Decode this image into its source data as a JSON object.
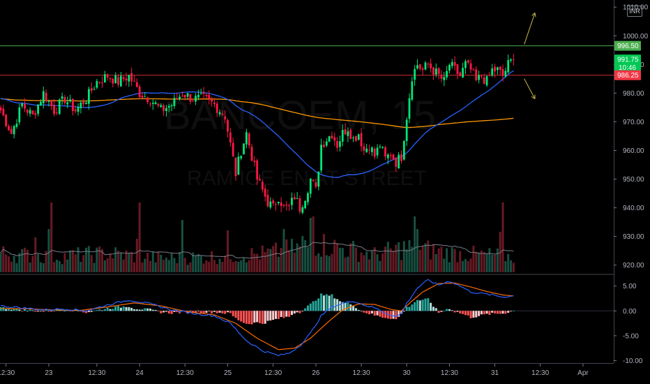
{
  "chart_data": {
    "type": "candlestick",
    "currency_label": "INR",
    "watermark_lines": [
      "BANCOEM, 15",
      "RAM ICE EN AT STREET"
    ],
    "price_axis": {
      "range": [
        917,
        1012
      ],
      "ticks": [
        920,
        930,
        940,
        950,
        960,
        970,
        980,
        990,
        1000,
        1010
      ],
      "tick_labels": [
        "920.00",
        "930.00",
        "940.00",
        "950.00",
        "960.00",
        "970.00",
        "980.00",
        "990.00",
        "1000.00",
        "1010.00"
      ]
    },
    "macd_axis": {
      "range": [
        -10.5,
        7.2
      ],
      "ticks": [
        5,
        0,
        -5,
        -10
      ],
      "tick_labels": [
        "5.00",
        "0.00",
        "-5.00",
        "-10.00"
      ]
    },
    "time_axis": {
      "labels": [
        {
          "text": "12:30",
          "i": 2
        },
        {
          "text": "23",
          "i": 18
        },
        {
          "text": "12:30",
          "i": 36
        },
        {
          "text": "24",
          "i": 52
        },
        {
          "text": "12:30",
          "i": 69
        },
        {
          "text": "25",
          "i": 85
        },
        {
          "text": "12:30",
          "i": 102
        },
        {
          "text": "26",
          "i": 118
        },
        {
          "text": "12:30",
          "i": 135
        },
        {
          "text": "30",
          "i": 152
        },
        {
          "text": "12:30",
          "i": 168
        },
        {
          "text": "31",
          "i": 185
        },
        {
          "text": "12:30",
          "i": 202
        },
        {
          "text": "Apr",
          "i": 218
        }
      ]
    },
    "price_tags": [
      {
        "id": "resistance",
        "label": "996.50",
        "value": 996.5,
        "color": "#4caf50"
      },
      {
        "id": "last",
        "label": "991.75",
        "sublabel": "10:46",
        "value": 991.75,
        "color": "#00c853"
      },
      {
        "id": "support",
        "label": "986.25",
        "value": 986.25,
        "color": "#f23645"
      }
    ],
    "levels": [
      {
        "name": "resistance-line",
        "value": 996.5,
        "color": "#4caf50"
      },
      {
        "name": "support-line",
        "value": 986.25,
        "color": "#d32f2f"
      }
    ],
    "arrows": [
      {
        "name": "up-arrow",
        "from": [
          196,
          997
        ],
        "to": [
          200,
          1008
        ],
        "color": "#c8b94a"
      },
      {
        "name": "down-arrow",
        "from": [
          196,
          985
        ],
        "to": [
          200,
          978
        ],
        "color": "#c8b94a"
      }
    ],
    "ma_short_color": "#2962ff",
    "ma_long_color": "#ff9800",
    "up_color": "#00e676",
    "down_color": "#ff1744",
    "macd_color": "#2962ff",
    "signal_color": "#ff6d00",
    "anchors": [
      [
        0,
        974
      ],
      [
        4,
        966
      ],
      [
        8,
        976
      ],
      [
        12,
        972
      ],
      [
        16,
        980
      ],
      [
        20,
        974
      ],
      [
        24,
        978
      ],
      [
        28,
        974
      ],
      [
        32,
        978
      ],
      [
        36,
        984
      ],
      [
        40,
        986
      ],
      [
        44,
        984
      ],
      [
        48,
        986
      ],
      [
        52,
        980
      ],
      [
        56,
        978
      ],
      [
        60,
        974
      ],
      [
        64,
        976
      ],
      [
        68,
        980
      ],
      [
        72,
        978
      ],
      [
        76,
        978
      ],
      [
        80,
        976
      ],
      [
        84,
        972
      ],
      [
        86,
        962
      ],
      [
        88,
        952
      ],
      [
        90,
        960
      ],
      [
        92,
        966
      ],
      [
        94,
        958
      ],
      [
        96,
        950
      ],
      [
        98,
        946
      ],
      [
        100,
        942
      ],
      [
        102,
        940
      ],
      [
        104,
        944
      ],
      [
        106,
        940
      ],
      [
        108,
        940
      ],
      [
        110,
        944
      ],
      [
        112,
        940
      ],
      [
        114,
        944
      ],
      [
        116,
        950
      ],
      [
        118,
        946
      ],
      [
        120,
        962
      ],
      [
        122,
        964
      ],
      [
        124,
        966
      ],
      [
        126,
        962
      ],
      [
        128,
        966
      ],
      [
        130,
        968
      ],
      [
        132,
        964
      ],
      [
        134,
        966
      ],
      [
        136,
        960
      ],
      [
        138,
        962
      ],
      [
        140,
        958
      ],
      [
        142,
        962
      ],
      [
        144,
        957
      ],
      [
        146,
        959
      ],
      [
        148,
        956
      ],
      [
        150,
        958
      ],
      [
        152,
        972
      ],
      [
        154,
        986
      ],
      [
        156,
        990
      ],
      [
        158,
        988
      ],
      [
        160,
        990
      ],
      [
        162,
        988
      ],
      [
        164,
        986
      ],
      [
        166,
        984
      ],
      [
        168,
        990
      ],
      [
        170,
        988
      ],
      [
        172,
        986
      ],
      [
        174,
        990
      ],
      [
        176,
        988
      ],
      [
        178,
        984
      ],
      [
        180,
        986
      ],
      [
        182,
        984
      ],
      [
        184,
        988
      ],
      [
        186,
        988
      ],
      [
        188,
        986
      ],
      [
        190,
        990
      ],
      [
        192,
        991.75
      ]
    ],
    "volume_anchors": [
      [
        0,
        0.3
      ],
      [
        20,
        0.25
      ],
      [
        40,
        0.3
      ],
      [
        60,
        0.22
      ],
      [
        80,
        0.25
      ],
      [
        100,
        0.3
      ],
      [
        120,
        0.45
      ],
      [
        140,
        0.28
      ],
      [
        152,
        0.4
      ],
      [
        170,
        0.3
      ],
      [
        192,
        0.25
      ]
    ],
    "volume_spikes": [
      [
        13,
        0.5
      ],
      [
        18,
        0.62
      ],
      [
        19,
        1.0
      ],
      [
        51,
        0.48
      ],
      [
        52,
        1.0
      ],
      [
        68,
        0.75
      ],
      [
        85,
        0.6
      ],
      [
        106,
        0.62
      ],
      [
        113,
        0.52
      ],
      [
        116,
        0.78
      ],
      [
        117,
        0.8
      ],
      [
        155,
        0.8
      ],
      [
        156,
        0.62
      ],
      [
        187,
        0.58
      ],
      [
        188,
        1.0
      ]
    ],
    "macd_anchors": [
      [
        0,
        1.0
      ],
      [
        8,
        0.6
      ],
      [
        16,
        0.2
      ],
      [
        24,
        0.4
      ],
      [
        32,
        0.0
      ],
      [
        40,
        1.2
      ],
      [
        48,
        2.2
      ],
      [
        56,
        1.4
      ],
      [
        64,
        0.2
      ],
      [
        72,
        -0.5
      ],
      [
        80,
        -1.0
      ],
      [
        86,
        -2.5
      ],
      [
        92,
        -6.0
      ],
      [
        98,
        -8.0
      ],
      [
        104,
        -9.0
      ],
      [
        108,
        -8.5
      ],
      [
        112,
        -7.0
      ],
      [
        116,
        -4.5
      ],
      [
        120,
        -1.0
      ],
      [
        124,
        0.8
      ],
      [
        128,
        1.5
      ],
      [
        132,
        2.0
      ],
      [
        136,
        1.2
      ],
      [
        140,
        0.6
      ],
      [
        144,
        -0.4
      ],
      [
        148,
        -1.2
      ],
      [
        150,
        -0.5
      ],
      [
        152,
        1.5
      ],
      [
        156,
        4.6
      ],
      [
        160,
        6.2
      ],
      [
        164,
        5.2
      ],
      [
        168,
        6.0
      ],
      [
        172,
        5.0
      ],
      [
        176,
        3.8
      ],
      [
        180,
        3.5
      ],
      [
        184,
        3.2
      ],
      [
        188,
        2.8
      ],
      [
        192,
        3.0
      ]
    ],
    "signal_anchors": [
      [
        0,
        0.5
      ],
      [
        10,
        0.4
      ],
      [
        20,
        0.2
      ],
      [
        30,
        0.1
      ],
      [
        40,
        0.8
      ],
      [
        50,
        1.6
      ],
      [
        60,
        1.0
      ],
      [
        70,
        -0.2
      ],
      [
        80,
        -0.8
      ],
      [
        88,
        -2.5
      ],
      [
        96,
        -5.5
      ],
      [
        104,
        -7.8
      ],
      [
        110,
        -7.5
      ],
      [
        116,
        -5.5
      ],
      [
        122,
        -2.5
      ],
      [
        128,
        0.2
      ],
      [
        134,
        1.4
      ],
      [
        140,
        1.3
      ],
      [
        146,
        0.3
      ],
      [
        150,
        0.0
      ],
      [
        154,
        2.0
      ],
      [
        158,
        3.8
      ],
      [
        164,
        5.5
      ],
      [
        170,
        5.6
      ],
      [
        176,
        4.8
      ],
      [
        182,
        3.9
      ],
      [
        188,
        3.2
      ],
      [
        192,
        3.0
      ]
    ]
  }
}
